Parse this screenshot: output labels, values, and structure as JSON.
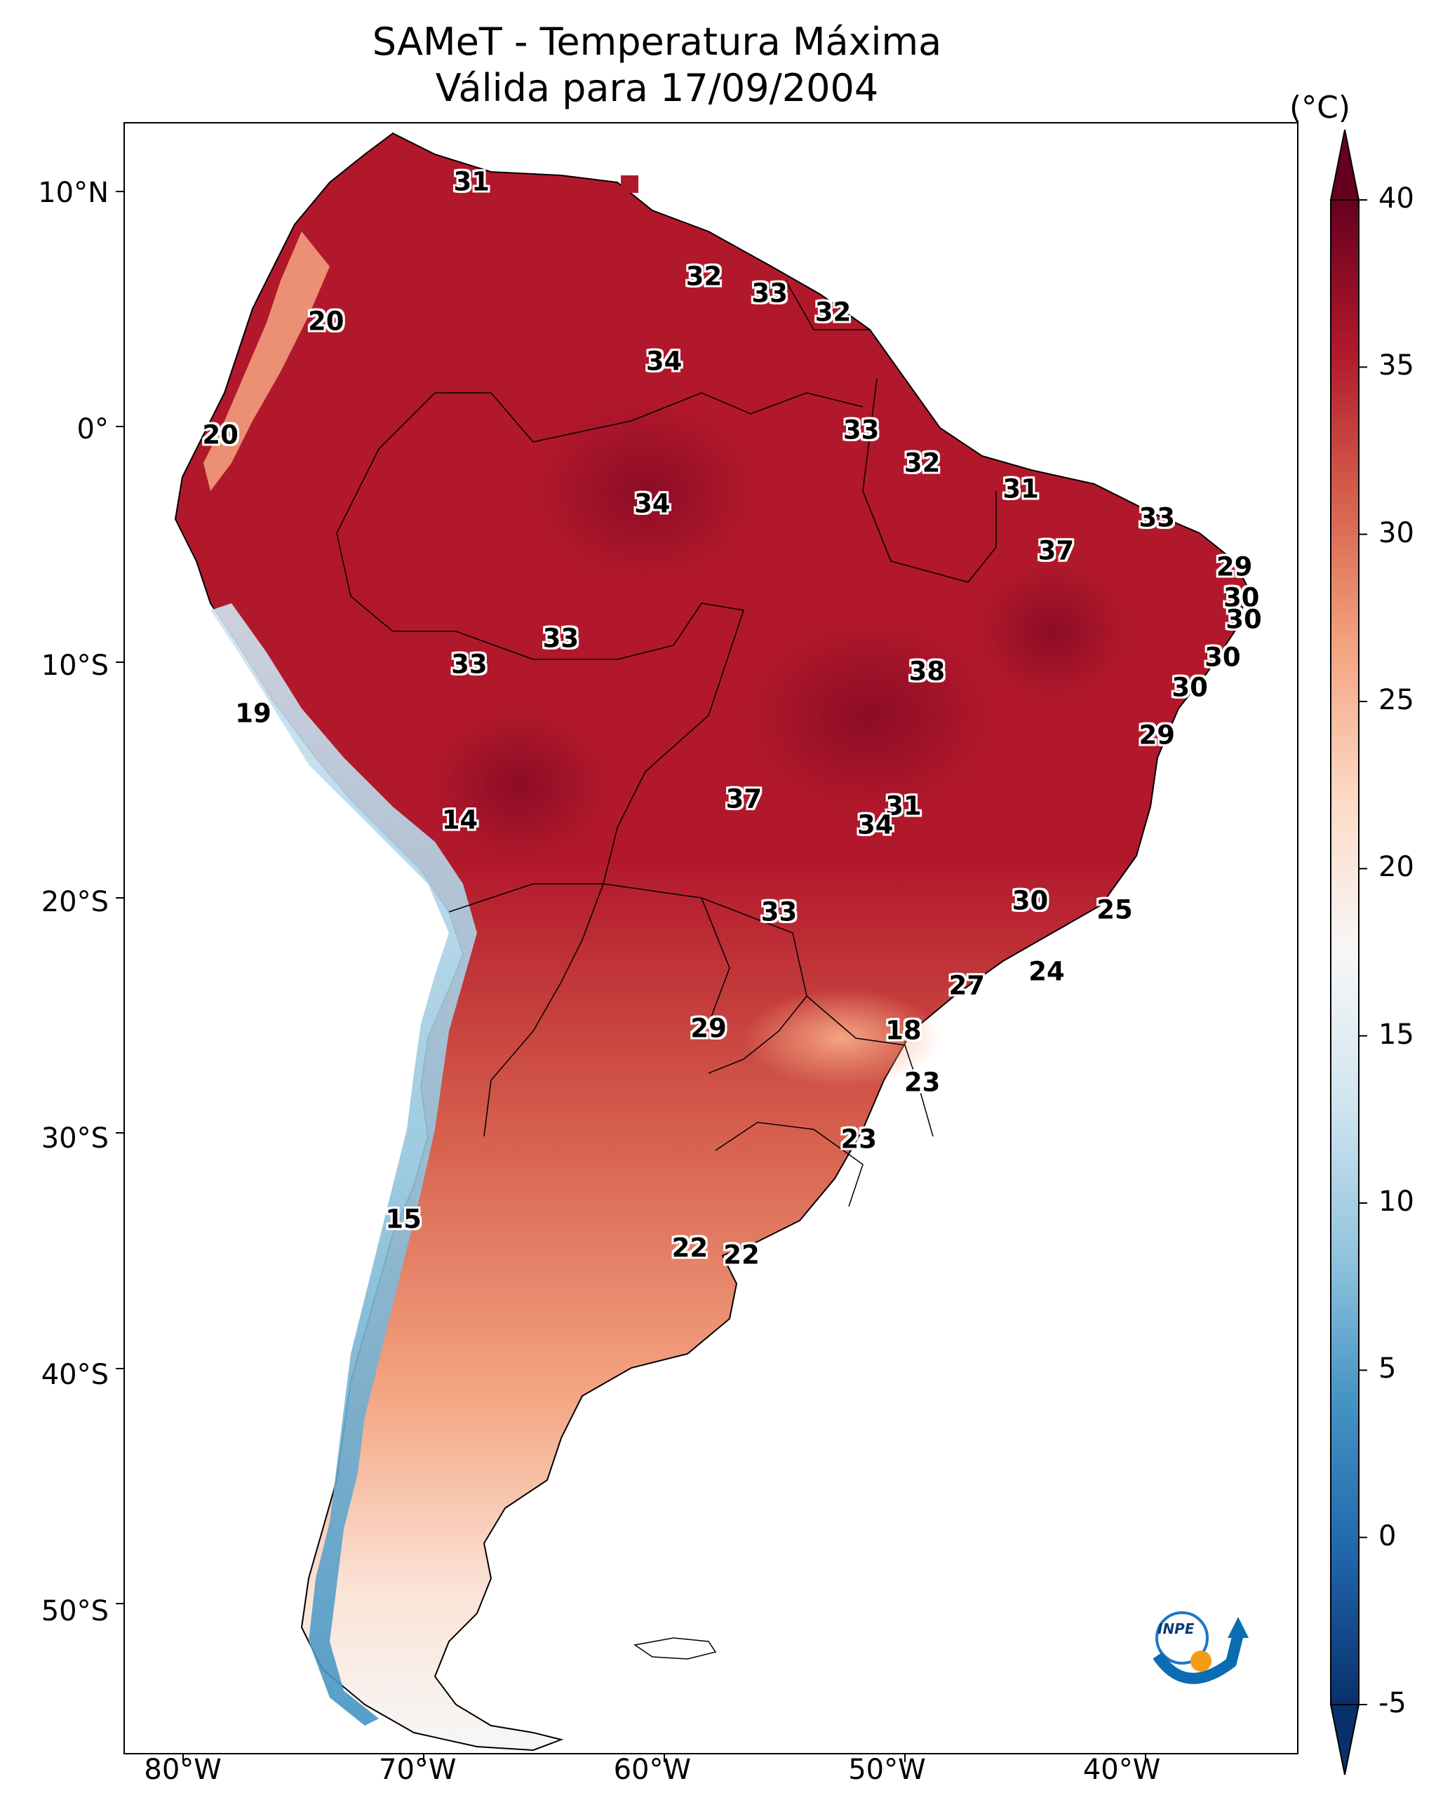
{
  "title": {
    "line1": "SAMeT - Temperatura Máxima",
    "line2": "Válida para 17/09/2004"
  },
  "axes": {
    "lat_ticks": [
      "10°N",
      "0°",
      "10°S",
      "20°S",
      "30°S",
      "40°S",
      "50°S"
    ],
    "lon_ticks": [
      "80°W",
      "70°W",
      "60°W",
      "50°W",
      "40°W"
    ]
  },
  "colorbar": {
    "unit": "(°C)",
    "min": -5,
    "max": 40,
    "ticks": [
      "40",
      "35",
      "30",
      "25",
      "20",
      "15",
      "10",
      "5",
      "0",
      "-5"
    ],
    "colors": [
      "#08306b",
      "#2166ac",
      "#4393c3",
      "#92c5de",
      "#d1e5f0",
      "#f7f7f7",
      "#fddbc7",
      "#f4a582",
      "#d6604d",
      "#b2182b",
      "#67001f"
    ]
  },
  "chart_data": {
    "type": "map",
    "variable": "Temperatura Máxima (°C)",
    "date": "17/09/2004",
    "region": "South America",
    "lon_range": [
      -82.5,
      -32.5
    ],
    "lat_range": [
      -56,
      13
    ],
    "station_labels": [
      {
        "lon": -67.7,
        "lat": 10.5,
        "value": "31"
      },
      {
        "lon": -57.8,
        "lat": 6.5,
        "value": "32"
      },
      {
        "lon": -55.0,
        "lat": 5.8,
        "value": "33"
      },
      {
        "lon": -52.3,
        "lat": 5.0,
        "value": "32"
      },
      {
        "lon": -59.5,
        "lat": 2.9,
        "value": "34"
      },
      {
        "lon": -73.9,
        "lat": 4.6,
        "value": "20"
      },
      {
        "lon": -78.4,
        "lat": -0.2,
        "value": "20"
      },
      {
        "lon": -51.1,
        "lat": 0.0,
        "value": "33"
      },
      {
        "lon": -48.5,
        "lat": -1.4,
        "value": "32"
      },
      {
        "lon": -44.3,
        "lat": -2.5,
        "value": "31"
      },
      {
        "lon": -60.0,
        "lat": -3.1,
        "value": "34"
      },
      {
        "lon": -38.5,
        "lat": -3.7,
        "value": "33"
      },
      {
        "lon": -42.8,
        "lat": -5.1,
        "value": "37"
      },
      {
        "lon": -35.2,
        "lat": -5.8,
        "value": "29"
      },
      {
        "lon": -34.9,
        "lat": -7.1,
        "value": "30"
      },
      {
        "lon": -34.8,
        "lat": -8.0,
        "value": "30"
      },
      {
        "lon": -63.9,
        "lat": -8.8,
        "value": "33"
      },
      {
        "lon": -67.8,
        "lat": -9.9,
        "value": "33"
      },
      {
        "lon": -35.7,
        "lat": -9.6,
        "value": "30"
      },
      {
        "lon": -48.3,
        "lat": -10.2,
        "value": "38"
      },
      {
        "lon": -37.1,
        "lat": -10.9,
        "value": "30"
      },
      {
        "lon": -77.0,
        "lat": -12.0,
        "value": "19"
      },
      {
        "lon": -38.5,
        "lat": -12.9,
        "value": "29"
      },
      {
        "lon": -56.1,
        "lat": -15.6,
        "value": "37"
      },
      {
        "lon": -49.3,
        "lat": -15.9,
        "value": "31"
      },
      {
        "lon": -50.5,
        "lat": -16.7,
        "value": "34"
      },
      {
        "lon": -68.2,
        "lat": -16.5,
        "value": "14"
      },
      {
        "lon": -43.9,
        "lat": -19.9,
        "value": "30"
      },
      {
        "lon": -40.3,
        "lat": -20.3,
        "value": "25"
      },
      {
        "lon": -54.6,
        "lat": -20.4,
        "value": "33"
      },
      {
        "lon": -43.2,
        "lat": -22.9,
        "value": "24"
      },
      {
        "lon": -46.6,
        "lat": -23.5,
        "value": "27"
      },
      {
        "lon": -57.6,
        "lat": -25.3,
        "value": "29"
      },
      {
        "lon": -49.3,
        "lat": -25.4,
        "value": "18"
      },
      {
        "lon": -48.5,
        "lat": -27.6,
        "value": "23"
      },
      {
        "lon": -51.2,
        "lat": -30.0,
        "value": "23"
      },
      {
        "lon": -70.6,
        "lat": -33.4,
        "value": "15"
      },
      {
        "lon": -58.4,
        "lat": -34.6,
        "value": "22"
      },
      {
        "lon": -56.2,
        "lat": -34.9,
        "value": "22"
      }
    ]
  },
  "logo": {
    "text": "INPE"
  }
}
